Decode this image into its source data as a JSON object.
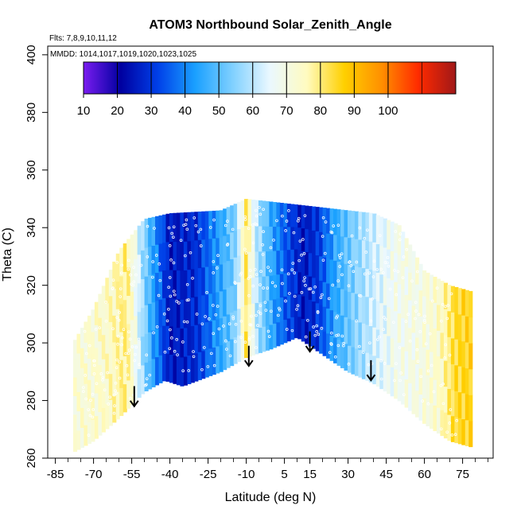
{
  "chart_data": {
    "type": "heatmap",
    "title": "ATOM3 Northbound Solar_Zenith_Angle",
    "flights_text": "Flts: 7,8,9,10,11,12",
    "dates_text": "MMDD: 1014,1017,1019,1020,1023,1025",
    "xlabel": "Latitude (deg N)",
    "ylabel": "Theta (C)",
    "xlim": [
      -88,
      87
    ],
    "ylim": [
      260,
      403
    ],
    "xticks": [
      -85,
      -70,
      -55,
      -40,
      -25,
      -10,
      5,
      15,
      30,
      45,
      60,
      75
    ],
    "yticks": [
      260,
      280,
      300,
      320,
      340,
      360,
      380,
      400
    ],
    "colorbar": {
      "range": [
        10,
        120
      ],
      "tick_values": [
        10,
        20,
        30,
        40,
        50,
        60,
        70,
        80,
        90,
        100
      ],
      "tick_labels": [
        "10",
        "20",
        "30",
        "40",
        "50",
        "60",
        "70",
        "80",
        "90",
        "100"
      ],
      "colors": [
        "#7a1cf0",
        "#0000a0",
        "#0040e8",
        "#1aa0ff",
        "#7fd0ff",
        "#eaf8ff",
        "#fffbc0",
        "#ffd000",
        "#ff9000",
        "#ff2a00",
        "#a01818"
      ]
    },
    "field": {
      "lat_bounds": [
        -78,
        78
      ],
      "theta_bottom": [
        [
          -78,
          262
        ],
        [
          -70,
          266
        ],
        [
          -60,
          274
        ],
        [
          -50,
          283
        ],
        [
          -42,
          287
        ],
        [
          -35,
          285
        ],
        [
          -20,
          290
        ],
        [
          -10,
          295
        ],
        [
          0,
          298
        ],
        [
          10,
          302
        ],
        [
          15,
          299
        ],
        [
          20,
          296
        ],
        [
          30,
          290
        ],
        [
          40,
          286
        ],
        [
          50,
          280
        ],
        [
          60,
          272
        ],
        [
          70,
          266
        ],
        [
          78,
          264
        ]
      ],
      "theta_top": [
        [
          -78,
          300
        ],
        [
          -70,
          312
        ],
        [
          -60,
          332
        ],
        [
          -50,
          343
        ],
        [
          -40,
          345
        ],
        [
          -20,
          346
        ],
        [
          -10,
          350
        ],
        [
          0,
          349
        ],
        [
          10,
          348
        ],
        [
          20,
          347
        ],
        [
          30,
          346
        ],
        [
          40,
          345
        ],
        [
          50,
          341
        ],
        [
          60,
          325
        ],
        [
          70,
          320
        ],
        [
          78,
          318
        ]
      ],
      "sza_by_latitude": [
        [
          -78,
          72
        ],
        [
          -65,
          74
        ],
        [
          -57,
          80
        ],
        [
          -52,
          62
        ],
        [
          -47,
          45
        ],
        [
          -40,
          25
        ],
        [
          -30,
          28
        ],
        [
          -20,
          45
        ],
        [
          -14,
          55
        ],
        [
          -10,
          82
        ],
        [
          -6,
          60
        ],
        [
          0,
          45
        ],
        [
          5,
          35
        ],
        [
          12,
          25
        ],
        [
          18,
          30
        ],
        [
          25,
          45
        ],
        [
          33,
          55
        ],
        [
          40,
          62
        ],
        [
          48,
          68
        ],
        [
          58,
          70
        ],
        [
          66,
          74
        ],
        [
          72,
          84
        ],
        [
          78,
          86
        ]
      ]
    },
    "arrows_lat_theta": [
      [
        -54,
        285
      ],
      [
        -9,
        299
      ],
      [
        15,
        304
      ],
      [
        39,
        294
      ]
    ]
  }
}
